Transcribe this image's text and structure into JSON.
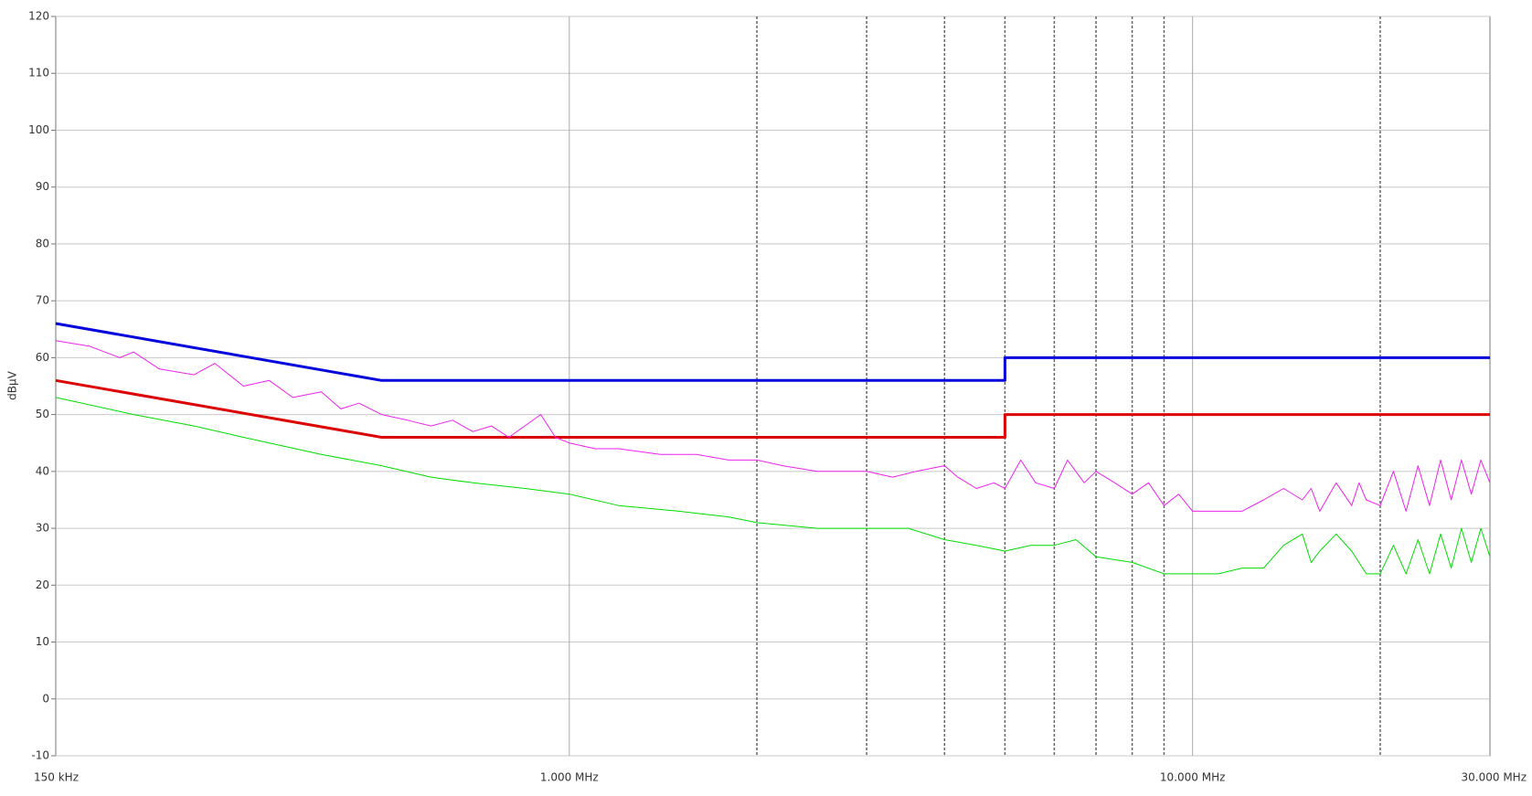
{
  "chart_data": {
    "type": "line",
    "y_label": "dBµV",
    "xscale": "log",
    "xlim": [
      0.15,
      30
    ],
    "ylim": [
      -10,
      120
    ],
    "xticks": [
      {
        "value": 0.15,
        "label": "150 kHz"
      },
      {
        "value": 1,
        "label": "1.000 MHz"
      },
      {
        "value": 10,
        "label": "10.000 MHz"
      },
      {
        "value": 30,
        "label": "30.000 MHz"
      }
    ],
    "x_dashed_grid": [
      2,
      3,
      4,
      5,
      6,
      7,
      8,
      9,
      20
    ],
    "yticks": [
      -10,
      0,
      10,
      20,
      30,
      40,
      50,
      60,
      70,
      80,
      90,
      100,
      110,
      120
    ],
    "grid": true,
    "series": [
      {
        "color": "#0000dd",
        "width": 3,
        "x": [
          0.15,
          0.5,
          5,
          5,
          30
        ],
        "values": [
          66,
          56,
          56,
          60,
          60
        ]
      },
      {
        "color": "#dd0000",
        "width": 3,
        "x": [
          0.15,
          0.5,
          5,
          5,
          30
        ],
        "values": [
          56,
          46,
          46,
          50,
          50
        ]
      },
      {
        "color": "#ee22ee",
        "width": 1,
        "x": [
          0.15,
          0.17,
          0.19,
          0.2,
          0.22,
          0.25,
          0.27,
          0.3,
          0.33,
          0.36,
          0.4,
          0.43,
          0.46,
          0.5,
          0.55,
          0.6,
          0.65,
          0.7,
          0.75,
          0.8,
          0.9,
          0.95,
          1,
          1.1,
          1.2,
          1.4,
          1.6,
          1.8,
          2,
          2.2,
          2.5,
          2.8,
          3,
          3.3,
          3.6,
          4,
          4.2,
          4.5,
          4.8,
          5,
          5.3,
          5.6,
          6,
          6.3,
          6.7,
          7,
          7.5,
          8,
          8.5,
          9,
          9.5,
          10,
          11,
          12,
          13,
          14,
          15,
          15.5,
          16,
          17,
          18,
          18.5,
          19,
          20,
          21,
          22,
          23,
          24,
          25,
          26,
          27,
          28,
          29,
          30
        ],
        "values": [
          63,
          62,
          60,
          61,
          58,
          57,
          59,
          55,
          56,
          53,
          54,
          51,
          52,
          50,
          49,
          48,
          49,
          47,
          48,
          46,
          50,
          46,
          45,
          44,
          44,
          43,
          43,
          42,
          42,
          41,
          40,
          40,
          40,
          39,
          40,
          41,
          39,
          37,
          38,
          37,
          42,
          38,
          37,
          42,
          38,
          40,
          38,
          36,
          38,
          34,
          36,
          33,
          33,
          33,
          35,
          37,
          35,
          37,
          33,
          38,
          34,
          38,
          35,
          34,
          40,
          33,
          41,
          34,
          42,
          35,
          42,
          36,
          42,
          38
        ]
      },
      {
        "color": "#00dd00",
        "width": 1,
        "x": [
          0.15,
          0.2,
          0.25,
          0.3,
          0.4,
          0.5,
          0.6,
          0.7,
          0.85,
          1,
          1.2,
          1.5,
          1.8,
          2,
          2.5,
          3,
          3.5,
          4,
          4.5,
          5,
          5.5,
          6,
          6.5,
          7,
          8,
          9,
          10,
          11,
          12,
          13,
          14,
          15,
          15.5,
          16,
          17,
          18,
          19,
          20,
          21,
          22,
          23,
          24,
          25,
          26,
          27,
          28,
          29,
          30
        ],
        "values": [
          53,
          50,
          48,
          46,
          43,
          41,
          39,
          38,
          37,
          36,
          34,
          33,
          32,
          31,
          30,
          30,
          30,
          28,
          27,
          26,
          27,
          27,
          28,
          25,
          24,
          22,
          22,
          22,
          23,
          23,
          27,
          29,
          24,
          26,
          29,
          26,
          22,
          22,
          27,
          22,
          28,
          22,
          29,
          23,
          30,
          24,
          30,
          25
        ]
      }
    ]
  }
}
